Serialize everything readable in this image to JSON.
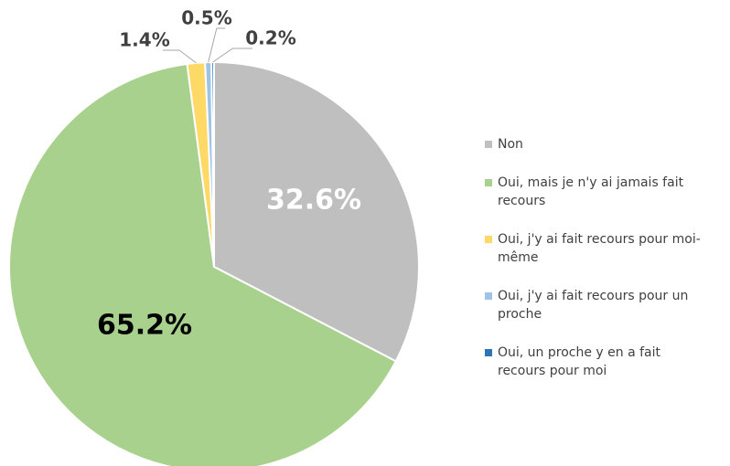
{
  "chart_data": {
    "type": "pie",
    "categories": [
      "Non",
      "Oui, mais je n'y ai jamais fait recours",
      "Oui, j'y ai fait recours pour moi-même",
      "Oui, j'y ai fait recours pour un proche",
      "Oui, un proche y en a fait recours pour moi"
    ],
    "values": [
      32.6,
      65.2,
      1.4,
      0.5,
      0.2
    ],
    "value_labels": [
      "32.6%",
      "65.2%",
      "1.4%",
      "0.5%",
      "0.2%"
    ],
    "colors": [
      "#bfbfbf",
      "#a9d18e",
      "#ffd966",
      "#9dc3e6",
      "#2e75b6"
    ],
    "legend": "right"
  }
}
